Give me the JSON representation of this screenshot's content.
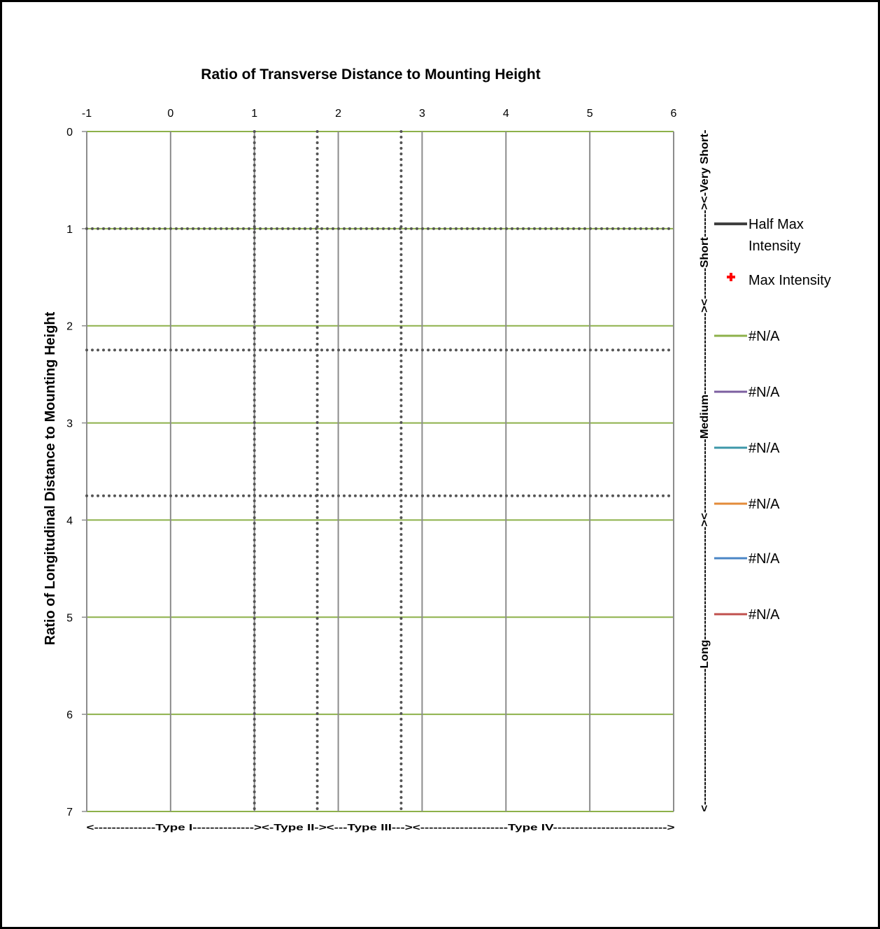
{
  "chart_data": {
    "type": "line",
    "title": "Ratio of Transverse Distance to Mounting Height",
    "xlabel": "Ratio of Transverse Distance to Mounting Height",
    "ylabel": "Ratio of Longitudinal Distance to Mounting Height",
    "xlim": [
      -1,
      6
    ],
    "ylim": [
      0,
      7
    ],
    "y_inverted": true,
    "x_axis_position": "top",
    "x_ticks": [
      "-1",
      "0",
      "1",
      "2",
      "3",
      "4",
      "5",
      "6"
    ],
    "y_ticks": [
      "0",
      "1",
      "2",
      "3",
      "4",
      "5",
      "6",
      "7"
    ],
    "grid": true,
    "vertical_gridlines_x": [
      -1,
      0,
      1,
      2,
      3,
      4,
      5,
      6
    ],
    "horizontal_gridlines_y": [
      0,
      1,
      2,
      3,
      4,
      5,
      6,
      7
    ],
    "grid_colors": {
      "vertical": "#8c8c8c",
      "horizontal": "#8db14a"
    },
    "dotted_boundaries": {
      "color": "#555555",
      "x": [
        1,
        1.75,
        2.75
      ],
      "y": [
        1,
        2.25,
        3.75
      ]
    },
    "transverse_types": {
      "label_text": "<--------------Type I--------------><-Type II-><---Type III---><--------------------Type IV-------------------------->",
      "segments": [
        {
          "name": "Type I",
          "from": -1,
          "to": 1
        },
        {
          "name": "Type II",
          "from": 1,
          "to": 1.75
        },
        {
          "name": "Type III",
          "from": 1.75,
          "to": 2.75
        },
        {
          "name": "Type IV",
          "from": 2.75,
          "to": 6
        }
      ]
    },
    "longitudinal_types": {
      "label_text": "<-----------------------------------Long-----------------------------><-------------------Medium---------------------><--------Short-------><-Very Short-",
      "segments": [
        {
          "name": "Very Short",
          "from": 0,
          "to": 1
        },
        {
          "name": "Short",
          "from": 1,
          "to": 2.25
        },
        {
          "name": "Medium",
          "from": 2.25,
          "to": 3.75
        },
        {
          "name": "Long",
          "from": 3.75,
          "to": 7
        }
      ]
    },
    "legend_position": "right",
    "series": [
      {
        "name": "Half Max Intensity",
        "color": "#404040",
        "marker": "line",
        "values": []
      },
      {
        "name": "Max Intensity",
        "color": "#ff0000",
        "marker": "cross",
        "values": []
      },
      {
        "name": "#N/A",
        "color": "#8db14a",
        "marker": "line",
        "values": []
      },
      {
        "name": "#N/A",
        "color": "#7c5fa0",
        "marker": "line",
        "values": []
      },
      {
        "name": "#N/A",
        "color": "#3d97a9",
        "marker": "line",
        "values": []
      },
      {
        "name": "#N/A",
        "color": "#e38b3a",
        "marker": "line",
        "values": []
      },
      {
        "name": "#N/A",
        "color": "#4a86c5",
        "marker": "line",
        "values": []
      },
      {
        "name": "#N/A",
        "color": "#c0504d",
        "marker": "line",
        "values": []
      }
    ]
  }
}
